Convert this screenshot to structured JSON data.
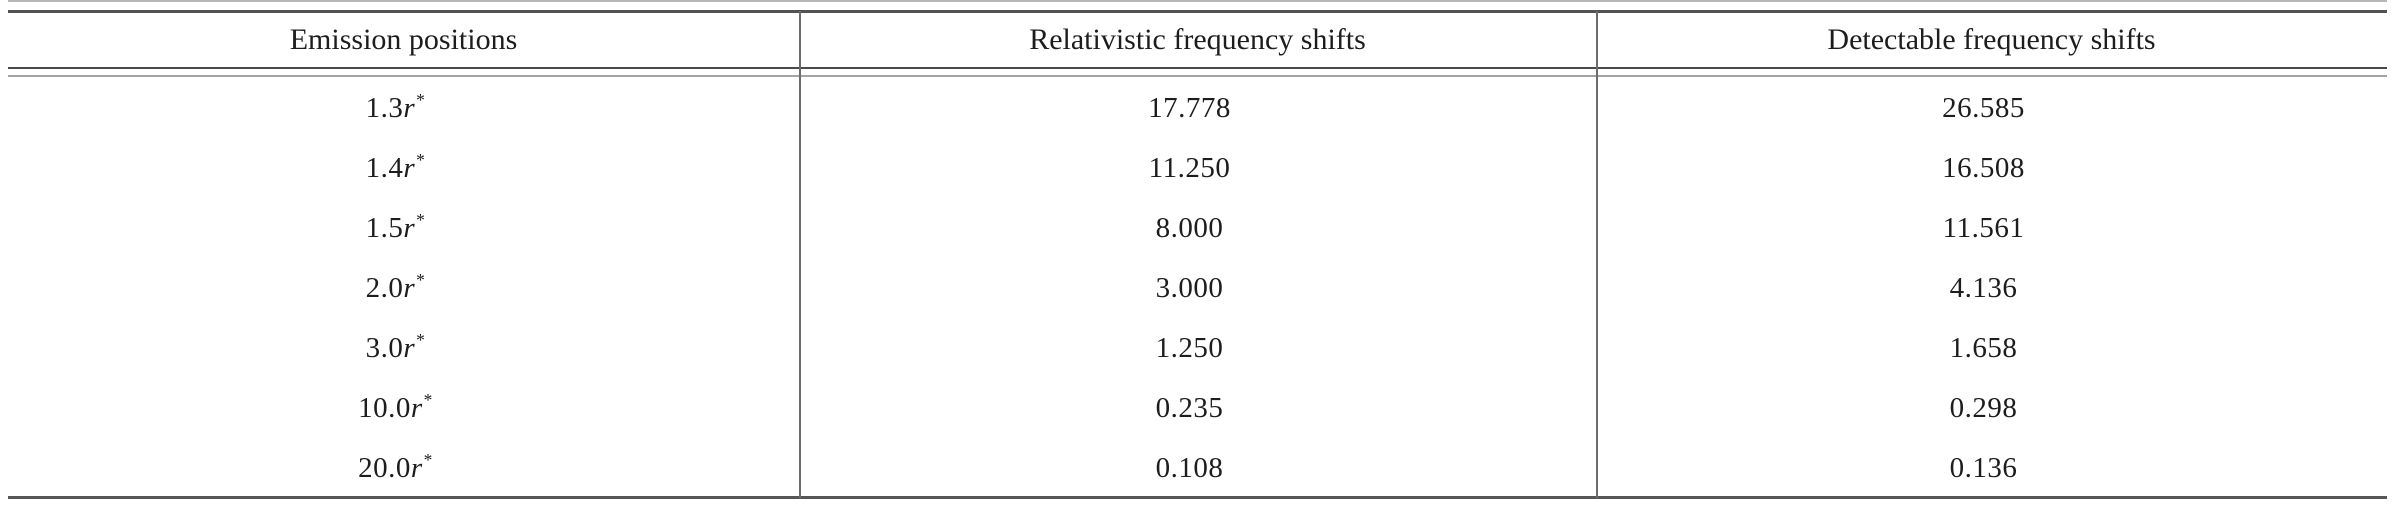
{
  "table": {
    "columns": [
      "Emission positions",
      "Relativistic frequency shifts",
      "Detectable frequency shifts"
    ],
    "rows": [
      {
        "position": {
          "coeff": "1.3",
          "symbol": "r",
          "sup": "*"
        },
        "relativistic": "17.778",
        "detectable": "26.585"
      },
      {
        "position": {
          "coeff": "1.4",
          "symbol": "r",
          "sup": "*"
        },
        "relativistic": "11.250",
        "detectable": "16.508"
      },
      {
        "position": {
          "coeff": "1.5",
          "symbol": "r",
          "sup": "*"
        },
        "relativistic": "8.000",
        "detectable": "11.561"
      },
      {
        "position": {
          "coeff": "2.0",
          "symbol": "r",
          "sup": "*"
        },
        "relativistic": "3.000",
        "detectable": "4.136"
      },
      {
        "position": {
          "coeff": "3.0",
          "symbol": "r",
          "sup": "*"
        },
        "relativistic": "1.250",
        "detectable": "1.658"
      },
      {
        "position": {
          "coeff": "10.0",
          "symbol": "r",
          "sup": "*"
        },
        "relativistic": "0.235",
        "detectable": "0.298"
      },
      {
        "position": {
          "coeff": "20.0",
          "symbol": "r",
          "sup": "*"
        },
        "relativistic": "0.108",
        "detectable": "0.136"
      }
    ]
  },
  "colors": {
    "text": "#1d1d1d",
    "rule_dark": "#525252",
    "rule_light": "#a3a3a3"
  }
}
